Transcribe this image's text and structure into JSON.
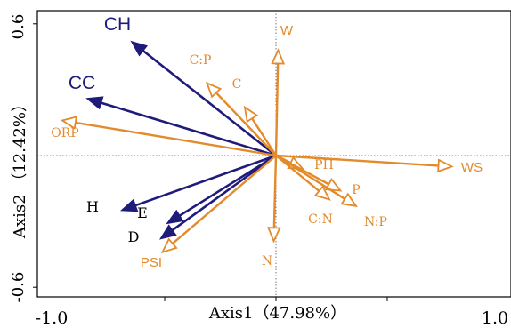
{
  "chart_data": {
    "type": "biplot",
    "title": "",
    "xlabel": "Axis1（47.98%）",
    "ylabel": "Axis2 （12.42%）",
    "xlim": [
      -1.0,
      1.0
    ],
    "ylim": [
      -0.68,
      0.68
    ],
    "x_ticks": [
      "-1.0",
      "1.0"
    ],
    "y_ticks": [
      "0.6",
      "-0.6"
    ],
    "x_tick_values": [
      -1.0,
      1.0
    ],
    "y_tick_values": [
      0.6,
      -0.6
    ],
    "reference_lines": {
      "x": 0,
      "y": 0,
      "style": "dotted"
    },
    "groups": [
      {
        "name": "",
        "color": "#1e1b7a"
      },
      {
        "name": "",
        "color": "#e38a2b"
      }
    ],
    "vectors": [
      {
        "label": "CH",
        "x": -0.65,
        "y": 0.52,
        "group": 0
      },
      {
        "label": "CC",
        "x": -0.85,
        "y": 0.26,
        "group": 0
      },
      {
        "label": "H",
        "x": -0.695,
        "y": -0.25,
        "group": 0
      },
      {
        "label": "E",
        "x": -0.49,
        "y": -0.31,
        "group": 0
      },
      {
        "label": "D",
        "x": -0.52,
        "y": -0.38,
        "group": 0
      },
      {
        "label": "W",
        "x": 0.01,
        "y": 0.48,
        "group": 1
      },
      {
        "label": "C:P",
        "x": -0.31,
        "y": 0.33,
        "group": 1
      },
      {
        "label": "C",
        "x": -0.14,
        "y": 0.22,
        "group": 1
      },
      {
        "label": "ORP",
        "x": -0.96,
        "y": 0.16,
        "group": 1
      },
      {
        "label": "WS",
        "x": 0.79,
        "y": -0.05,
        "group": 1
      },
      {
        "label": "PH",
        "x": 0.12,
        "y": -0.06,
        "group": 1
      },
      {
        "label": "P",
        "x": 0.29,
        "y": -0.16,
        "group": 1
      },
      {
        "label": "N:P",
        "x": 0.36,
        "y": -0.23,
        "group": 1
      },
      {
        "label": "C:N",
        "x": 0.24,
        "y": -0.2,
        "group": 1
      },
      {
        "label": "N",
        "x": -0.01,
        "y": -0.39,
        "group": 1
      },
      {
        "label": "PSI",
        "x": -0.51,
        "y": -0.44,
        "group": 1
      }
    ]
  }
}
